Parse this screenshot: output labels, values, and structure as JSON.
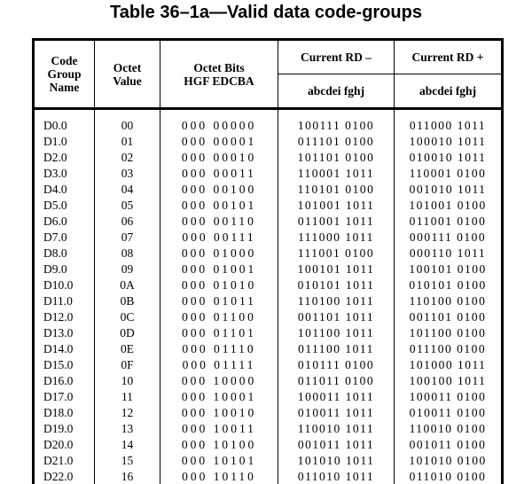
{
  "title": "Table 36–1a—Valid data code-groups",
  "colors": {
    "text": "#000000",
    "border": "#000000",
    "background": "#ffffff"
  },
  "table": {
    "headers": {
      "code_group_name_lines": [
        "Code",
        "Group",
        "Name"
      ],
      "octet_value_lines": [
        "Octet",
        "Value"
      ],
      "octet_bits_lines": [
        "Octet Bits",
        "HGF EDCBA"
      ],
      "current_rd_minus": "Current RD –",
      "current_rd_plus": "Current RD +",
      "rd_minus_sub": "abcdei fghj",
      "rd_plus_sub": "abcdei fghj"
    },
    "rows": [
      {
        "name": "D0.0",
        "octet": "00",
        "bits": "000 00000",
        "rd_minus": "100111 0100",
        "rd_plus": "011000 1011"
      },
      {
        "name": "D1.0",
        "octet": "01",
        "bits": "000 00001",
        "rd_minus": "011101 0100",
        "rd_plus": "100010 1011"
      },
      {
        "name": "D2.0",
        "octet": "02",
        "bits": "000 00010",
        "rd_minus": "101101 0100",
        "rd_plus": "010010 1011"
      },
      {
        "name": "D3.0",
        "octet": "03",
        "bits": "000 00011",
        "rd_minus": "110001 1011",
        "rd_plus": "110001 0100"
      },
      {
        "name": "D4.0",
        "octet": "04",
        "bits": "000 00100",
        "rd_minus": "110101 0100",
        "rd_plus": "001010 1011"
      },
      {
        "name": "D5.0",
        "octet": "05",
        "bits": "000 00101",
        "rd_minus": "101001 1011",
        "rd_plus": "101001 0100"
      },
      {
        "name": "D6.0",
        "octet": "06",
        "bits": "000 00110",
        "rd_minus": "011001 1011",
        "rd_plus": "011001 0100"
      },
      {
        "name": "D7.0",
        "octet": "07",
        "bits": "000 00111",
        "rd_minus": "111000 1011",
        "rd_plus": "000111 0100"
      },
      {
        "name": "D8.0",
        "octet": "08",
        "bits": "000 01000",
        "rd_minus": "111001 0100",
        "rd_plus": "000110 1011"
      },
      {
        "name": "D9.0",
        "octet": "09",
        "bits": "000 01001",
        "rd_minus": "100101 1011",
        "rd_plus": "100101 0100"
      },
      {
        "name": "D10.0",
        "octet": "0A",
        "bits": "000 01010",
        "rd_minus": "010101 1011",
        "rd_plus": "010101 0100"
      },
      {
        "name": "D11.0",
        "octet": "0B",
        "bits": "000 01011",
        "rd_minus": "110100 1011",
        "rd_plus": "110100 0100"
      },
      {
        "name": "D12.0",
        "octet": "0C",
        "bits": "000 01100",
        "rd_minus": "001101 1011",
        "rd_plus": "001101 0100"
      },
      {
        "name": "D13.0",
        "octet": "0D",
        "bits": "000 01101",
        "rd_minus": "101100 1011",
        "rd_plus": "101100 0100"
      },
      {
        "name": "D14.0",
        "octet": "0E",
        "bits": "000 01110",
        "rd_minus": "011100 1011",
        "rd_plus": "011100 0100"
      },
      {
        "name": "D15.0",
        "octet": "0F",
        "bits": "000 01111",
        "rd_minus": "010111 0100",
        "rd_plus": "101000 1011"
      },
      {
        "name": "D16.0",
        "octet": "10",
        "bits": "000 10000",
        "rd_minus": "011011 0100",
        "rd_plus": "100100 1011"
      },
      {
        "name": "D17.0",
        "octet": "11",
        "bits": "000 10001",
        "rd_minus": "100011 1011",
        "rd_plus": "100011 0100"
      },
      {
        "name": "D18.0",
        "octet": "12",
        "bits": "000 10010",
        "rd_minus": "010011 1011",
        "rd_plus": "010011 0100"
      },
      {
        "name": "D19.0",
        "octet": "13",
        "bits": "000 10011",
        "rd_minus": "110010 1011",
        "rd_plus": "110010 0100"
      },
      {
        "name": "D20.0",
        "octet": "14",
        "bits": "000 10100",
        "rd_minus": "001011 1011",
        "rd_plus": "001011 0100"
      },
      {
        "name": "D21.0",
        "octet": "15",
        "bits": "000 10101",
        "rd_minus": "101010 1011",
        "rd_plus": "101010 0100"
      },
      {
        "name": "D22.0",
        "octet": "16",
        "bits": "000 10110",
        "rd_minus": "011010 1011",
        "rd_plus": "011010 0100"
      }
    ]
  }
}
